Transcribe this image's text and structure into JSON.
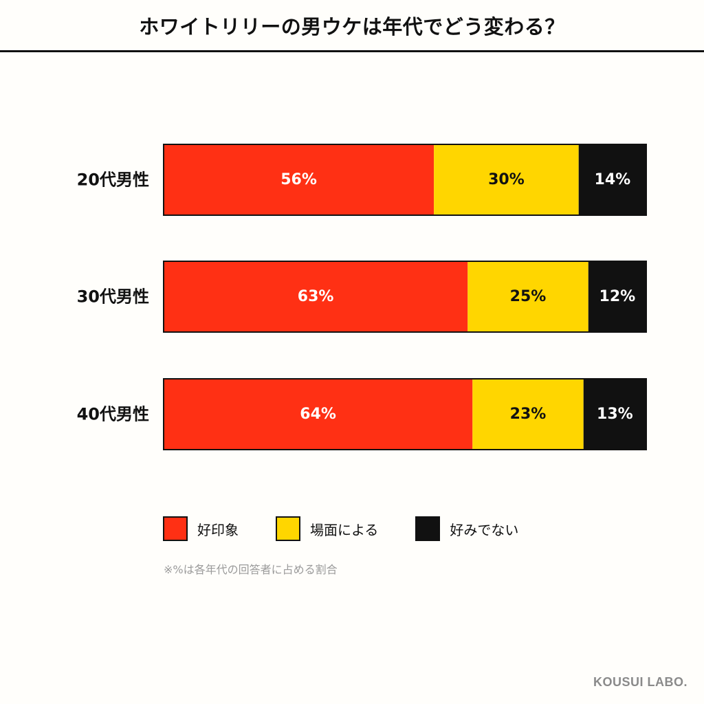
{
  "title": "ホワイトリリーの男ウケは年代でどう変わる？",
  "chart_data": {
    "type": "bar",
    "orientation": "horizontal",
    "stacked": "percent",
    "categories": [
      "20代男性",
      "30代男性",
      "40代男性"
    ],
    "series": [
      {
        "name": "好印象",
        "values": [
          56,
          63,
          64
        ],
        "color": "#ff3014",
        "label_color": "#ffffff"
      },
      {
        "name": "場面による",
        "values": [
          30,
          25,
          23
        ],
        "color": "#ffd600",
        "label_color": "#111111"
      },
      {
        "name": "好みでない",
        "values": [
          14,
          12,
          13
        ],
        "color": "#111111",
        "label_color": "#ffffff"
      }
    ],
    "value_suffix": "%",
    "xlim": [
      0,
      100
    ],
    "grid": false,
    "legend_position": "bottom"
  },
  "note": "※%は各年代の回答者に占める割合",
  "brand": "KOUSUI LABO."
}
